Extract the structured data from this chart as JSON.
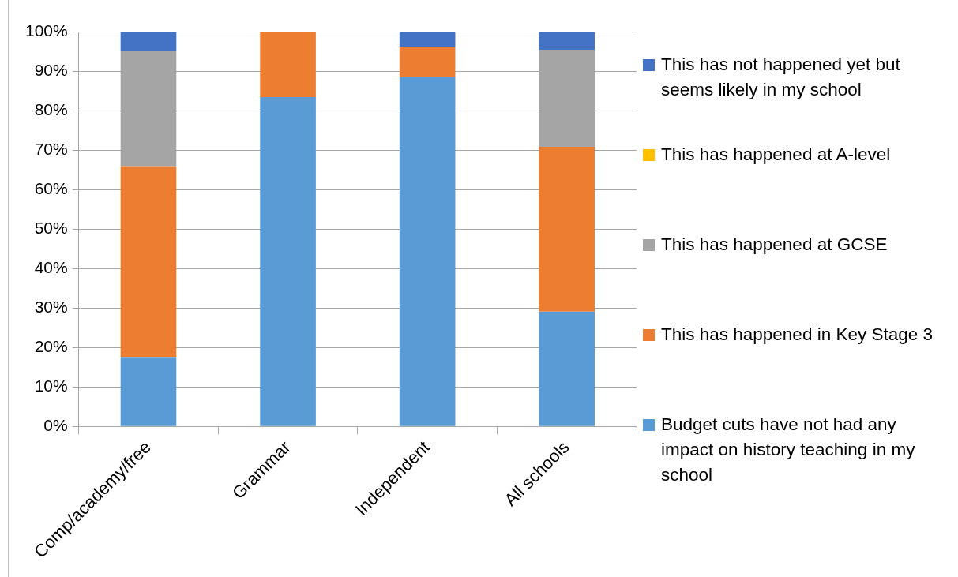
{
  "chart_data": {
    "type": "bar",
    "stacked": true,
    "categories": [
      "Comp/academy/free",
      "Grammar",
      "Independent",
      "All schools"
    ],
    "series": [
      {
        "name": "Budget cuts have not had any impact on history teaching in my school",
        "color": "#5b9bd5",
        "values": [
          17.6,
          83.4,
          88.4,
          29.1
        ]
      },
      {
        "name": "This has happened in Key Stage 3",
        "color": "#ed7d31",
        "values": [
          48.3,
          16.6,
          7.7,
          41.7
        ]
      },
      {
        "name": "This has happened at GCSE",
        "color": "#a5a5a5",
        "values": [
          29.3,
          0,
          0,
          24.6
        ]
      },
      {
        "name": "This has happened at A-level",
        "color": "#ffc000",
        "values": [
          0,
          0,
          0,
          0
        ]
      },
      {
        "name": "This has not happened yet but seems likely in my school",
        "color": "#4472c4",
        "values": [
          4.8,
          0,
          3.9,
          4.6
        ]
      }
    ],
    "ylim": [
      0,
      100
    ],
    "yticks": [
      {
        "value": 0,
        "label": "0%"
      },
      {
        "value": 10,
        "label": "10%"
      },
      {
        "value": 20,
        "label": "20%"
      },
      {
        "value": 30,
        "label": "30%"
      },
      {
        "value": 40,
        "label": "40%"
      },
      {
        "value": 50,
        "label": "50%"
      },
      {
        "value": 60,
        "label": "60%"
      },
      {
        "value": 70,
        "label": "70%"
      },
      {
        "value": 80,
        "label": "80%"
      },
      {
        "value": 90,
        "label": "90%"
      },
      {
        "value": 100,
        "label": "100%"
      }
    ],
    "grid": "y",
    "legend": "right"
  }
}
